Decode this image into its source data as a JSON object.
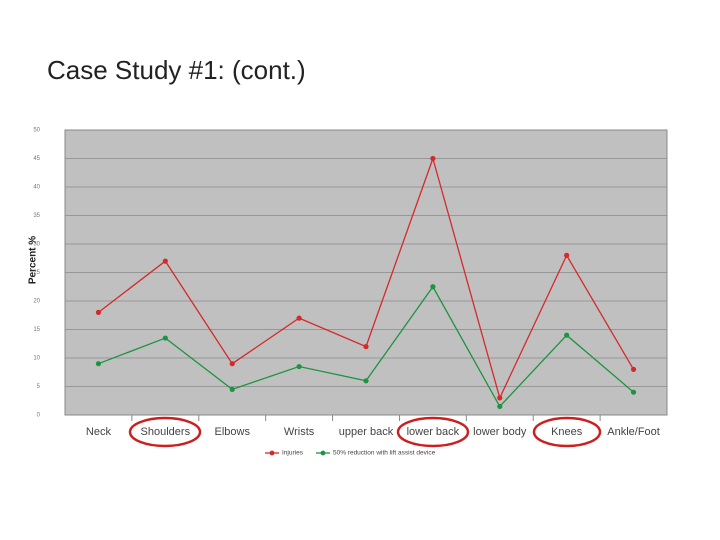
{
  "chart_data": {
    "type": "line",
    "title": "Case Study #1:  (cont.)",
    "y_label": "Percent %",
    "categories": [
      "Neck",
      "Shoulders",
      "Elbows",
      "Wrists",
      "upper back",
      "lower back",
      "lower body",
      "Knees",
      "Ankle/Foot"
    ],
    "series": [
      {
        "name": "Injuries",
        "color": "#d42a2a",
        "values": [
          18,
          27,
          9,
          17,
          12,
          45,
          3,
          28,
          8
        ]
      },
      {
        "name": "50% reduction with lift assist device",
        "color": "#1e9440",
        "values": [
          9,
          13.5,
          4.5,
          8.5,
          6,
          22.5,
          1.5,
          14,
          4
        ]
      }
    ],
    "ylim": [
      0,
      50
    ],
    "yticks": [
      0,
      5,
      10,
      15,
      20,
      25,
      30,
      35,
      40,
      45,
      50
    ],
    "grid": true
  }
}
